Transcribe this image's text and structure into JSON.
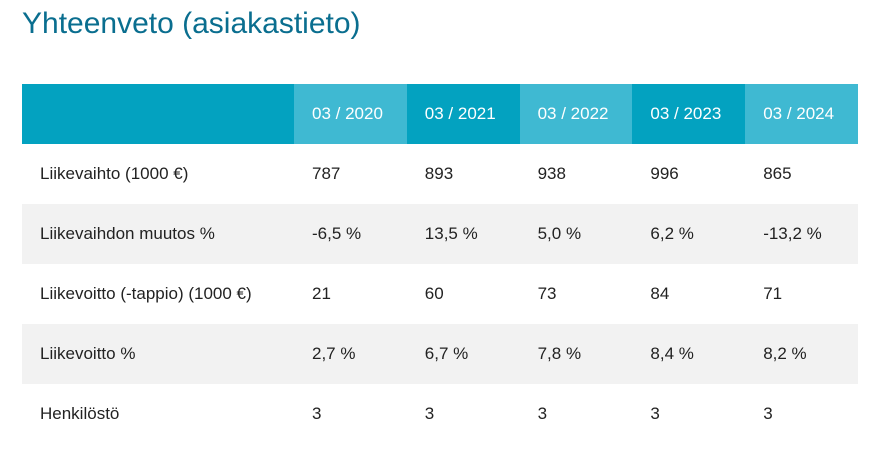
{
  "title": "Yhteenveto (asiakastieto)",
  "columns": [
    "03 / 2020",
    "03 / 2021",
    "03 / 2022",
    "03 / 2023",
    "03 / 2024"
  ],
  "rows": [
    {
      "label": "Liikevaihto (1000 €)",
      "values": [
        "787",
        "893",
        "938",
        "996",
        "865"
      ]
    },
    {
      "label": "Liikevaihdon muutos %",
      "values": [
        "-6,5 %",
        "13,5 %",
        "5,0 %",
        "6,2 %",
        "-13,2 %"
      ]
    },
    {
      "label": "Liikevoitto (-tappio) (1000 €)",
      "values": [
        "21",
        "60",
        "73",
        "84",
        "71"
      ]
    },
    {
      "label": "Liikevoitto %",
      "values": [
        "2,7 %",
        "6,7 %",
        "7,8 %",
        "8,4 %",
        "8,2 %"
      ]
    },
    {
      "label": "Henkilöstö",
      "values": [
        "3",
        "3",
        "3",
        "3",
        "3"
      ]
    }
  ],
  "colors": {
    "title": "#0a6e8f",
    "header_dark": "#03a2c0",
    "header_light": "#3fb9d2",
    "row_alt": "#f2f2f2"
  }
}
